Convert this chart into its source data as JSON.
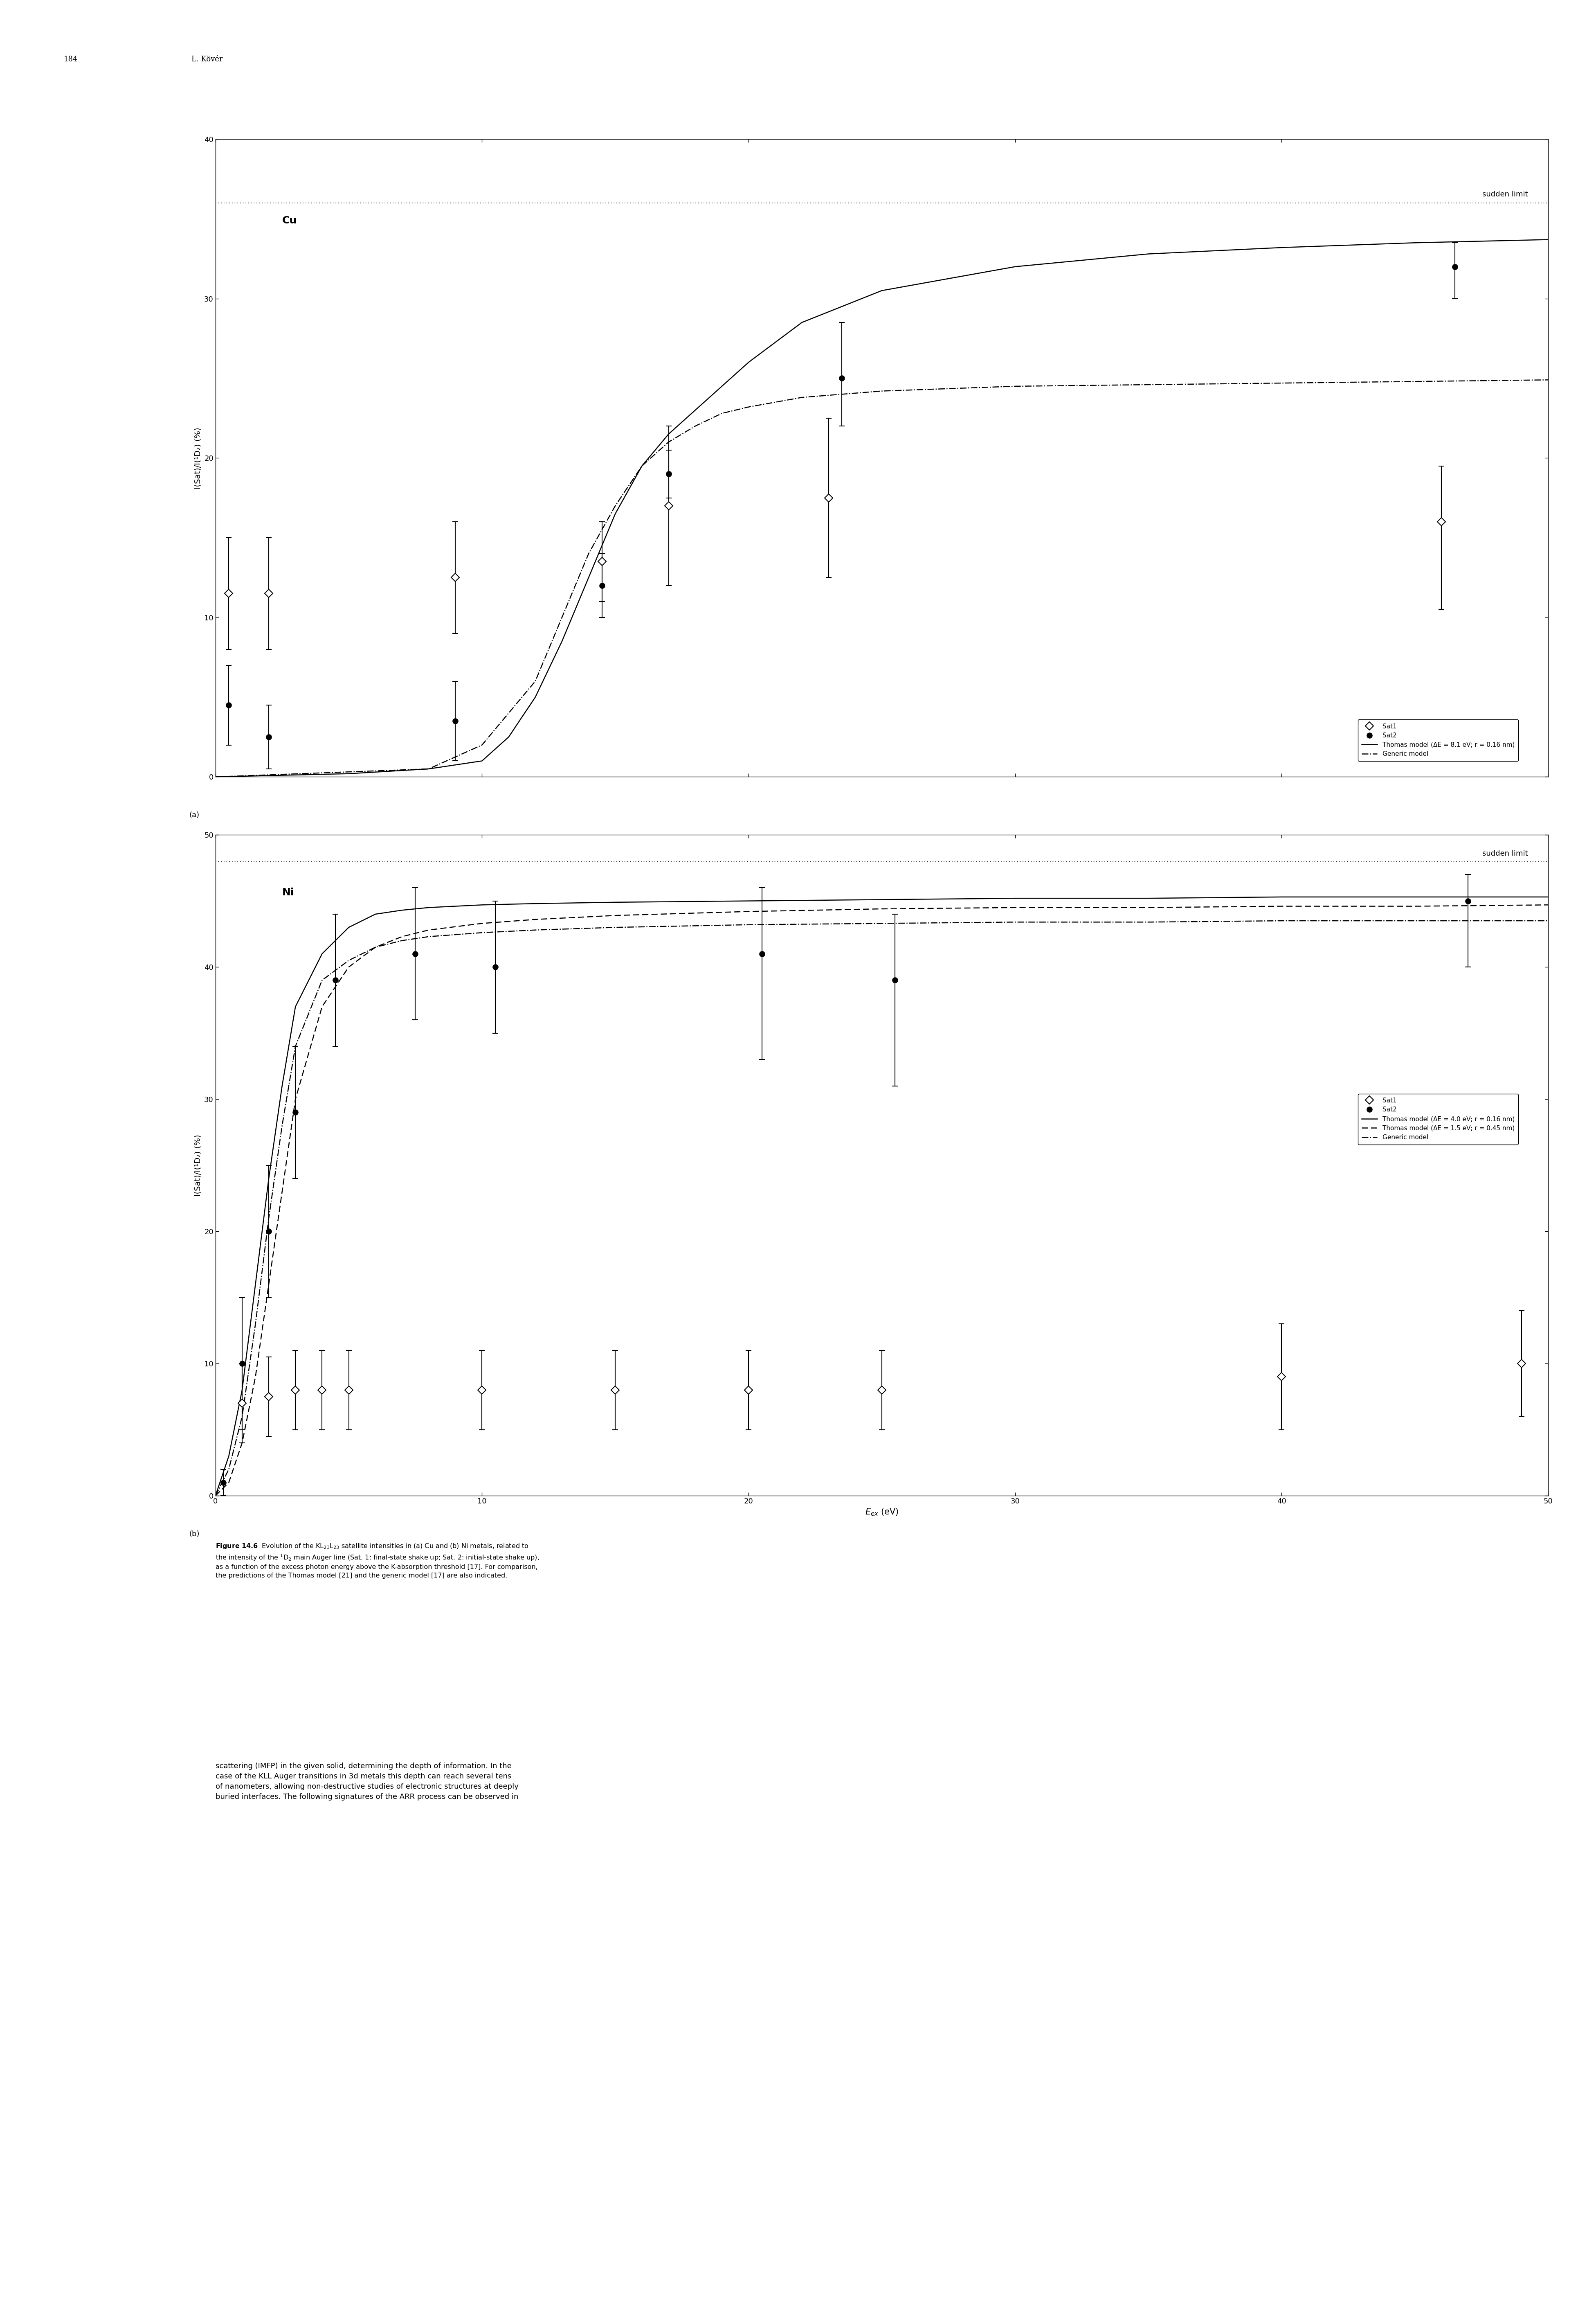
{
  "page_header_num": "184",
  "page_header_name": "L. Kövér",
  "panel_a": {
    "label": "(a)",
    "element": "Cu",
    "ylabel": "I(Sat)/I(¹D₂) (%)",
    "xlim": [
      0,
      50
    ],
    "ylim": [
      0,
      40
    ],
    "xticks": [
      0,
      10,
      20,
      30,
      40,
      50
    ],
    "yticks": [
      0,
      10,
      20,
      30,
      40
    ],
    "sudden_limit": 36.0,
    "sat1_x": [
      0.5,
      2.0,
      9.0,
      14.5,
      17.0,
      23.0,
      46.0
    ],
    "sat1_y": [
      11.5,
      11.5,
      12.5,
      13.5,
      17.0,
      17.5,
      16.0
    ],
    "sat1_yerr_lo": [
      3.5,
      3.5,
      3.5,
      2.5,
      5.0,
      5.0,
      5.5
    ],
    "sat1_yerr_hi": [
      3.5,
      3.5,
      3.5,
      2.5,
      5.0,
      5.0,
      3.5
    ],
    "sat2_x": [
      0.5,
      2.0,
      9.0,
      14.5,
      17.0,
      23.5,
      46.5
    ],
    "sat2_y": [
      4.5,
      2.5,
      3.5,
      12.0,
      19.0,
      25.0,
      32.0
    ],
    "sat2_yerr_lo": [
      2.5,
      2.0,
      2.5,
      2.0,
      1.5,
      3.0,
      2.0
    ],
    "sat2_yerr_hi": [
      2.5,
      2.0,
      2.5,
      2.0,
      1.5,
      3.5,
      1.5
    ],
    "thomas_x": [
      0,
      5,
      8,
      10,
      11,
      12,
      13,
      14,
      15,
      16,
      17,
      18,
      19,
      20,
      22,
      25,
      30,
      35,
      40,
      45,
      50
    ],
    "thomas_y": [
      0,
      0.2,
      0.5,
      1.0,
      2.5,
      5.0,
      8.5,
      12.5,
      16.5,
      19.5,
      21.5,
      23.0,
      24.5,
      26.0,
      28.5,
      30.5,
      32.0,
      32.8,
      33.2,
      33.5,
      33.7
    ],
    "generic_x": [
      0,
      8,
      10,
      12,
      13,
      14,
      15,
      16,
      17,
      18,
      19,
      20,
      22,
      25,
      30,
      35,
      40,
      45,
      50
    ],
    "generic_y": [
      0,
      0.5,
      2.0,
      6.0,
      10.0,
      14.0,
      17.0,
      19.5,
      21.0,
      22.0,
      22.8,
      23.2,
      23.8,
      24.2,
      24.5,
      24.6,
      24.7,
      24.8,
      24.9
    ],
    "legend_thomas": "Thomas model (ΔE = 8.1 eV; r = 0.16 nm)",
    "legend_generic": "Generic model"
  },
  "panel_b": {
    "label": "(b)",
    "element": "Ni",
    "ylabel": "I(Sat)/I(¹D₂) (%)",
    "xlabel": "E_{ex} (eV)",
    "xlim": [
      0,
      50
    ],
    "ylim": [
      0,
      50
    ],
    "xticks": [
      0,
      10,
      20,
      30,
      40,
      50
    ],
    "yticks": [
      0,
      10,
      20,
      30,
      40,
      50
    ],
    "sudden_limit": 48.0,
    "sat1_x": [
      1.0,
      2.0,
      3.0,
      4.0,
      5.0,
      10.0,
      15.0,
      20.0,
      25.0,
      40.0,
      49.0
    ],
    "sat1_y": [
      7.0,
      7.5,
      8.0,
      8.0,
      8.0,
      8.0,
      8.0,
      8.0,
      8.0,
      9.0,
      10.0
    ],
    "sat1_yerr_lo": [
      3.0,
      3.0,
      3.0,
      3.0,
      3.0,
      3.0,
      3.0,
      3.0,
      3.0,
      4.0,
      4.0
    ],
    "sat1_yerr_hi": [
      3.0,
      3.0,
      3.0,
      3.0,
      3.0,
      3.0,
      3.0,
      3.0,
      3.0,
      4.0,
      4.0
    ],
    "sat2_x": [
      0.3,
      1.0,
      2.0,
      3.0,
      4.5,
      7.5,
      10.5,
      20.5,
      25.5,
      47.0
    ],
    "sat2_y": [
      1.0,
      10.0,
      20.0,
      29.0,
      39.0,
      41.0,
      40.0,
      41.0,
      39.0,
      45.0
    ],
    "sat2_yerr_lo": [
      1.0,
      5.0,
      5.0,
      5.0,
      5.0,
      5.0,
      5.0,
      8.0,
      8.0,
      5.0
    ],
    "sat2_yerr_hi": [
      1.0,
      5.0,
      5.0,
      5.0,
      5.0,
      5.0,
      5.0,
      5.0,
      5.0,
      2.0
    ],
    "thomas1_x": [
      0,
      0.5,
      1,
      1.5,
      2,
      2.5,
      3,
      4,
      5,
      6,
      7,
      8,
      10,
      12,
      15,
      20,
      25,
      30,
      35,
      40,
      45,
      50
    ],
    "thomas1_y": [
      0,
      3,
      8,
      16,
      24,
      31,
      37,
      41,
      43,
      44,
      44.3,
      44.5,
      44.7,
      44.8,
      44.9,
      45.0,
      45.1,
      45.2,
      45.2,
      45.3,
      45.3,
      45.3
    ],
    "thomas2_x": [
      0,
      0.5,
      1,
      1.5,
      2,
      2.5,
      3,
      4,
      5,
      6,
      7,
      8,
      10,
      12,
      15,
      20,
      25,
      30,
      35,
      40,
      45,
      50
    ],
    "thomas2_y": [
      0,
      1,
      4,
      9,
      16,
      23,
      30,
      37,
      40,
      41.5,
      42.3,
      42.8,
      43.3,
      43.6,
      43.9,
      44.2,
      44.4,
      44.5,
      44.5,
      44.6,
      44.6,
      44.7
    ],
    "generic_x": [
      0,
      0.5,
      1,
      1.5,
      2,
      2.5,
      3,
      4,
      5,
      6,
      7,
      8,
      10,
      12,
      15,
      20,
      25,
      30,
      35,
      40,
      45,
      50
    ],
    "generic_y": [
      0,
      2,
      6,
      13,
      21,
      28,
      34,
      39,
      40.5,
      41.5,
      42.0,
      42.3,
      42.6,
      42.8,
      43.0,
      43.2,
      43.3,
      43.4,
      43.4,
      43.5,
      43.5,
      43.5
    ],
    "legend_thomas1": "Thomas model (ΔE = 4.0 eV; r = 0.16 nm)",
    "legend_thomas2": "Thomas model (ΔE = 1.5 eV; r = 0.45 nm)",
    "legend_generic": "Generic model"
  }
}
